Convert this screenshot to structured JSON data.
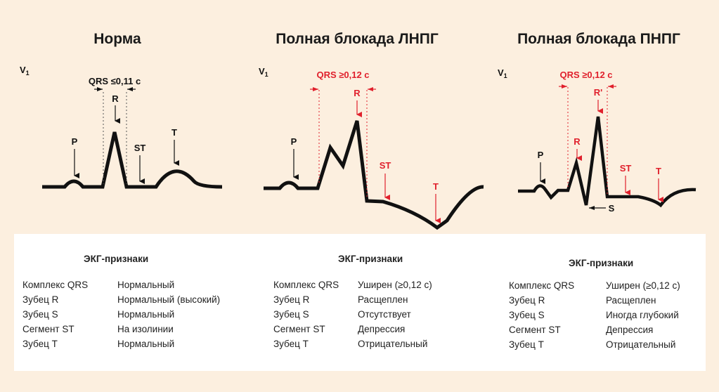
{
  "panels": [
    {
      "title": "Норма",
      "lead": "V",
      "lead_sub": "1",
      "qrs_label": "QRS ≤0,11 с",
      "wave_labels": {
        "p": "P",
        "r": "R",
        "st": "ST",
        "t": "T"
      }
    },
    {
      "title": "Полная блокада ЛНПГ",
      "lead": "V",
      "lead_sub": "1",
      "qrs_label": "QRS ≥0,12 с",
      "wave_labels": {
        "p": "P",
        "r": "R",
        "st": "ST",
        "t": "T"
      }
    },
    {
      "title": "Полная блокада ПНПГ",
      "lead": "V",
      "lead_sub": "1",
      "qrs_label": "QRS ≥0,12 с",
      "wave_labels": {
        "p": "P",
        "r": "R",
        "r2": "R'",
        "st": "ST",
        "t": "T",
        "s": "S"
      }
    }
  ],
  "signs": [
    {
      "title": "ЭКГ-признаки",
      "rows": [
        {
          "k": "Комплекс QRS",
          "v": "Нормальный"
        },
        {
          "k": "Зубец R",
          "v": "Нормальный (высокий)"
        },
        {
          "k": "Зубец S",
          "v": "Нормальный"
        },
        {
          "k": "Сегмент ST",
          "v": "На изолинии"
        },
        {
          "k": "Зубец T",
          "v": "Нормальный"
        }
      ]
    },
    {
      "title": "ЭКГ-признаки",
      "rows": [
        {
          "k": "Комплекс QRS",
          "v": "Уширен (≥0,12 с)"
        },
        {
          "k": "Зубец R",
          "v": "Расщеплен"
        },
        {
          "k": "Зубец S",
          "v": "Отсутствует"
        },
        {
          "k": "Сегмент ST",
          "v": "Депрессия"
        },
        {
          "k": "Зубец T",
          "v": "Отрицательный"
        }
      ]
    },
    {
      "title": "ЭКГ-признаки",
      "rows": [
        {
          "k": "Комплекс QRS",
          "v": "Уширен (≥0,12 с)"
        },
        {
          "k": "Зубец R",
          "v": "Расщеплен"
        },
        {
          "k": "Зубец S",
          "v": "Иногда глубокий"
        },
        {
          "k": "Сегмент ST",
          "v": "Депрессия"
        },
        {
          "k": "Зубец T",
          "v": "Отрицательный"
        }
      ]
    }
  ],
  "colors": {
    "trace": "#111111",
    "accent": "#e0202c",
    "black_label": "#111111"
  }
}
